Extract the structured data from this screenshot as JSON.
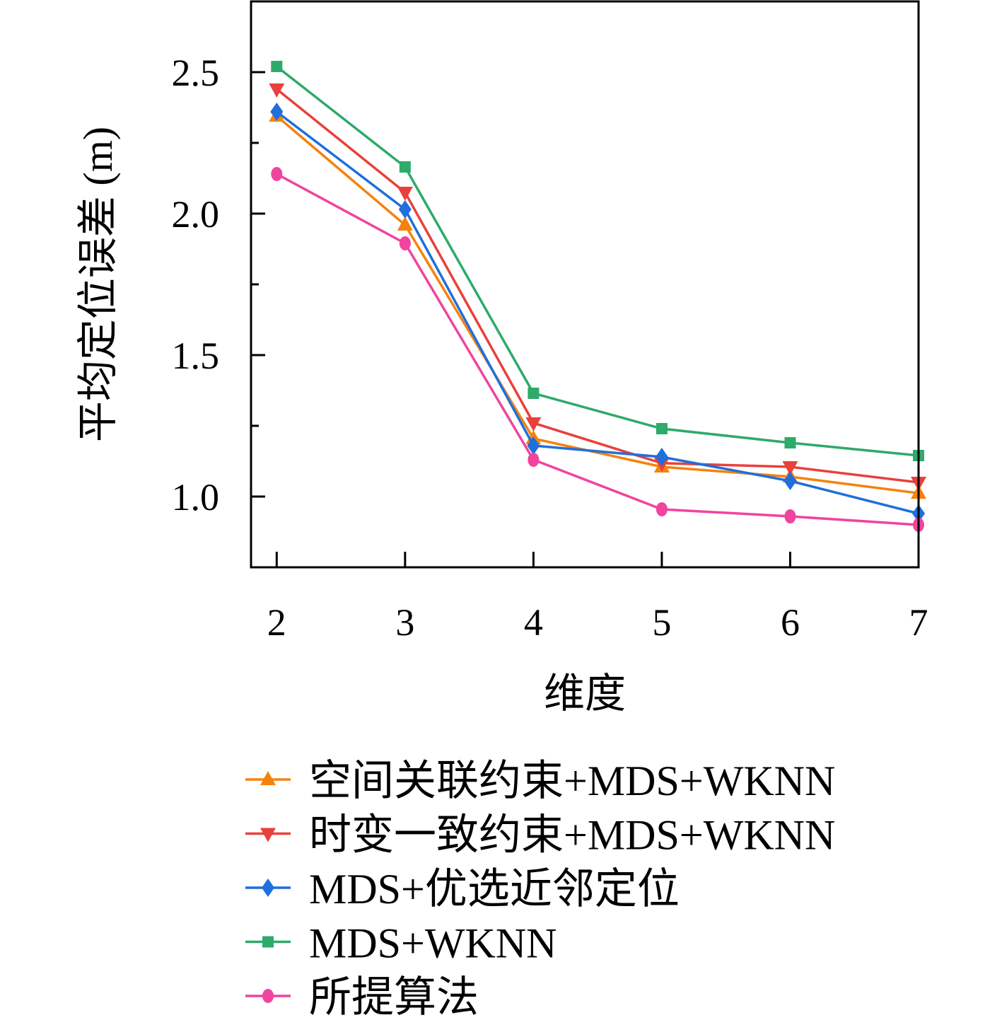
{
  "chart_data": {
    "type": "line",
    "title": "",
    "xlabel": "维度",
    "ylabel": "平均定位误差 (m)",
    "x": [
      2,
      3,
      4,
      5,
      6,
      7
    ],
    "xlim": [
      1.8,
      7
    ],
    "ylim": [
      0.75,
      2.75
    ],
    "xticks": [
      "2",
      "3",
      "4",
      "5",
      "6",
      "7"
    ],
    "yticks": [
      "1.0",
      "1.5",
      "2.0",
      "2.5"
    ],
    "yminor": [
      1.25,
      1.75,
      2.25
    ],
    "grid": false,
    "legend_position": "bottom",
    "series": [
      {
        "name": "空间关联约束+MDS+WKNN",
        "color": "#f5820d",
        "marker": "triangle-up",
        "values": [
          2.345,
          1.96,
          1.205,
          1.105,
          1.07,
          1.012
        ]
      },
      {
        "name": "时变一致约束+MDS+WKNN",
        "color": "#e8413c",
        "marker": "triangle-down",
        "values": [
          2.44,
          2.075,
          1.26,
          1.118,
          1.105,
          1.05
        ]
      },
      {
        "name": "MDS+优选近邻定位",
        "color": "#1f6fdc",
        "marker": "diamond",
        "values": [
          2.36,
          2.015,
          1.18,
          1.14,
          1.055,
          0.94
        ]
      },
      {
        "name": "MDS+WKNN",
        "color": "#2eaa6a",
        "marker": "square",
        "values": [
          2.52,
          2.165,
          1.365,
          1.24,
          1.19,
          1.145
        ]
      },
      {
        "name": "所提算法",
        "color": "#f0449e",
        "marker": "circle",
        "values": [
          2.14,
          1.895,
          1.13,
          0.955,
          0.93,
          0.9
        ]
      }
    ]
  }
}
